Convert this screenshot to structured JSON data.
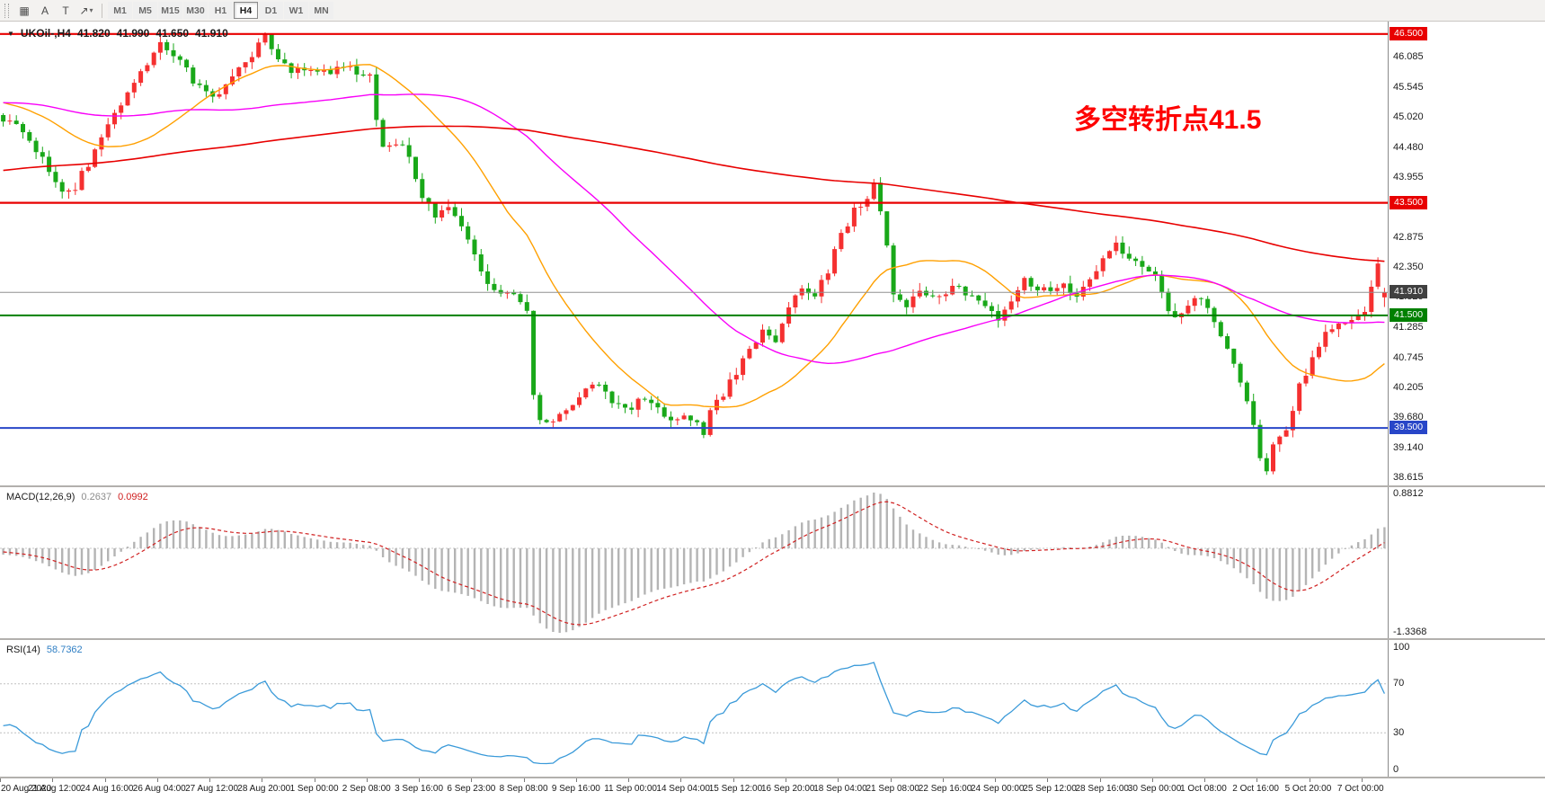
{
  "toolbar": {
    "tools": [
      {
        "name": "chart-window-tool",
        "glyph": "▦"
      },
      {
        "name": "text-label-tool",
        "glyph": "A"
      },
      {
        "name": "text-tool",
        "glyph": "T"
      },
      {
        "name": "trendline-tool",
        "glyph": "↗"
      }
    ],
    "dropdown_caret": "▾",
    "timeframes": [
      "M1",
      "M5",
      "M15",
      "M30",
      "H1",
      "H4",
      "D1",
      "W1",
      "MN"
    ],
    "active_timeframe": "H4"
  },
  "chart": {
    "dropdown_icon": "▼",
    "symbol_header": "UKOil-,H4",
    "ohlc": {
      "open": "41.820",
      "high": "41.990",
      "low": "41.650",
      "close": "41.910"
    },
    "annotation": {
      "text": "多空转折点41.5",
      "color": "#fe0000"
    },
    "price_axis_labels": [
      "46.085",
      "45.545",
      "45.020",
      "44.480",
      "43.955",
      "43.415",
      "42.875",
      "42.350",
      "41.825",
      "41.285",
      "40.745",
      "40.205",
      "39.680",
      "39.140",
      "38.615"
    ],
    "price_badges": [
      {
        "label": "46.500",
        "color": "#e80000"
      },
      {
        "label": "43.500",
        "color": "#e80000"
      },
      {
        "label": "41.910",
        "color": "#404040"
      },
      {
        "label": "41.500",
        "color": "#008000"
      },
      {
        "label": "39.500",
        "color": "#2846c8"
      }
    ],
    "hlines": [
      {
        "price": 46.5,
        "color": "#e80000",
        "width": 2.2
      },
      {
        "price": 43.5,
        "color": "#e80000",
        "width": 2.2
      },
      {
        "price": 41.5,
        "color": "#008000",
        "width": 2
      },
      {
        "price": 39.5,
        "color": "#2846c8",
        "width": 2
      }
    ],
    "bid_line": {
      "price": 41.91,
      "color": "#909090"
    }
  },
  "macd": {
    "label": "MACD(12,26,9)",
    "value_main": "0.2637",
    "value_signal": "0.0992",
    "axis_labels": [
      "0.8812",
      "-1.3368"
    ],
    "scale_max": 0.8812,
    "scale_min": -1.3368,
    "histogram_color": "#b4b4b4",
    "signal_color": "#d02020"
  },
  "rsi": {
    "label": "RSI(14)",
    "value": "58.7362",
    "axis_labels": [
      "100",
      "70",
      "30",
      "0"
    ],
    "levels": [
      70,
      30
    ],
    "line_color": "#3a9ad9"
  },
  "time_axis": {
    "step": 8,
    "labels": [
      "20 Aug 2020",
      "21 Aug 12:00",
      "24 Aug 16:00",
      "26 Aug 04:00",
      "27 Aug 12:00",
      "28 Aug 20:00",
      "1 Sep 00:00",
      "2 Sep 08:00",
      "3 Sep 16:00",
      "6 Sep 23:00",
      "8 Sep 08:00",
      "9 Sep 16:00",
      "11 Sep 00:00",
      "14 Sep 04:00",
      "15 Sep 12:00",
      "16 Sep 20:00",
      "18 Sep 04:00",
      "21 Sep 08:00",
      "22 Sep 16:00",
      "24 Sep 00:00",
      "25 Sep 12:00",
      "28 Sep 16:00",
      "30 Sep 00:00",
      "1 Oct 08:00",
      "2 Oct 16:00",
      "5 Oct 20:00",
      "7 Oct 00:00"
    ]
  },
  "chart_data": {
    "type": "candlestick",
    "symbol": "UKOil-",
    "timeframe": "H4",
    "title": "UKOil-,H4 41.820 41.990 41.650 41.910",
    "visible_range": {
      "min_price": 38.48,
      "max_price": 46.72,
      "candles": 212
    },
    "current_ohlc": {
      "open": 41.82,
      "high": 41.99,
      "low": 41.65,
      "close": 41.91
    },
    "colors": {
      "bull": "#f53030",
      "bear": "#19a819"
    },
    "price_anchors": [
      [
        -200,
        42.3
      ],
      [
        -160,
        43.0
      ],
      [
        -130,
        43.3
      ],
      [
        -100,
        44.2
      ],
      [
        -70,
        44.9
      ],
      [
        -40,
        45.2
      ],
      [
        -20,
        45.6
      ],
      [
        -8,
        45.2
      ],
      [
        0,
        45.0
      ],
      [
        3,
        44.75
      ],
      [
        6,
        44.3
      ],
      [
        9,
        43.65
      ],
      [
        11,
        43.8
      ],
      [
        13,
        44.2
      ],
      [
        16,
        44.9
      ],
      [
        19,
        45.4
      ],
      [
        22,
        45.95
      ],
      [
        24,
        46.3
      ],
      [
        26,
        46.15
      ],
      [
        29,
        45.7
      ],
      [
        32,
        45.35
      ],
      [
        34,
        45.6
      ],
      [
        37,
        46.0
      ],
      [
        40,
        46.42
      ],
      [
        42,
        46.05
      ],
      [
        44,
        45.75
      ],
      [
        46,
        45.9
      ],
      [
        48,
        45.8
      ],
      [
        51,
        45.9
      ],
      [
        54,
        45.85
      ],
      [
        56,
        45.75
      ],
      [
        57,
        44.95
      ],
      [
        58,
        44.45
      ],
      [
        60,
        44.55
      ],
      [
        62,
        44.35
      ],
      [
        64,
        43.6
      ],
      [
        66,
        43.25
      ],
      [
        68,
        43.5
      ],
      [
        70,
        43.15
      ],
      [
        72,
        42.55
      ],
      [
        74,
        42.1
      ],
      [
        76,
        41.9
      ],
      [
        78,
        41.8
      ],
      [
        80,
        41.55
      ],
      [
        81,
        40.1
      ],
      [
        82,
        39.7
      ],
      [
        84,
        39.6
      ],
      [
        86,
        39.85
      ],
      [
        88,
        40.05
      ],
      [
        90,
        40.35
      ],
      [
        92,
        40.1
      ],
      [
        94,
        39.85
      ],
      [
        96,
        39.9
      ],
      [
        98,
        40.0
      ],
      [
        100,
        39.8
      ],
      [
        102,
        39.65
      ],
      [
        104,
        39.7
      ],
      [
        106,
        39.55
      ],
      [
        107,
        39.4
      ],
      [
        108,
        39.75
      ],
      [
        110,
        40.1
      ],
      [
        112,
        40.5
      ],
      [
        114,
        40.9
      ],
      [
        116,
        41.2
      ],
      [
        118,
        41.1
      ],
      [
        120,
        41.6
      ],
      [
        122,
        42.0
      ],
      [
        124,
        41.85
      ],
      [
        126,
        42.3
      ],
      [
        128,
        42.9
      ],
      [
        130,
        43.35
      ],
      [
        132,
        43.6
      ],
      [
        133,
        43.8
      ],
      [
        134,
        43.3
      ],
      [
        135,
        42.7
      ],
      [
        136,
        41.9
      ],
      [
        138,
        41.6
      ],
      [
        140,
        41.95
      ],
      [
        142,
        41.8
      ],
      [
        144,
        41.9
      ],
      [
        146,
        42.05
      ],
      [
        148,
        41.8
      ],
      [
        150,
        41.7
      ],
      [
        152,
        41.45
      ],
      [
        154,
        41.8
      ],
      [
        156,
        42.15
      ],
      [
        158,
        41.95
      ],
      [
        160,
        41.9
      ],
      [
        162,
        42.0
      ],
      [
        164,
        41.85
      ],
      [
        166,
        42.15
      ],
      [
        168,
        42.55
      ],
      [
        170,
        42.8
      ],
      [
        172,
        42.5
      ],
      [
        174,
        42.35
      ],
      [
        176,
        42.3
      ],
      [
        177,
        41.9
      ],
      [
        178,
        41.55
      ],
      [
        180,
        41.5
      ],
      [
        182,
        41.85
      ],
      [
        184,
        41.7
      ],
      [
        186,
        41.15
      ],
      [
        188,
        40.6
      ],
      [
        190,
        40.05
      ],
      [
        191,
        39.6
      ],
      [
        192,
        38.95
      ],
      [
        193,
        38.8
      ],
      [
        194,
        39.25
      ],
      [
        196,
        39.45
      ],
      [
        198,
        40.25
      ],
      [
        200,
        40.75
      ],
      [
        202,
        41.2
      ],
      [
        204,
        41.4
      ],
      [
        206,
        41.45
      ],
      [
        208,
        41.6
      ],
      [
        209,
        41.95
      ],
      [
        210,
        42.35
      ],
      [
        211,
        41.91
      ]
    ],
    "moving_averages": [
      {
        "name": "ma-fast",
        "period": 21,
        "color": "#ffa000",
        "width": 1.4
      },
      {
        "name": "ma-medium",
        "period": 55,
        "color": "#f800f8",
        "width": 1.4
      },
      {
        "name": "ma-slow",
        "period": 200,
        "color": "#e80000",
        "width": 1.6
      }
    ],
    "indicators": {
      "macd": {
        "fast": 12,
        "slow": 26,
        "signal": 9,
        "current_main": 0.2637,
        "current_signal": 0.0992
      },
      "rsi": {
        "period": 14,
        "current": 58.7362
      }
    }
  }
}
